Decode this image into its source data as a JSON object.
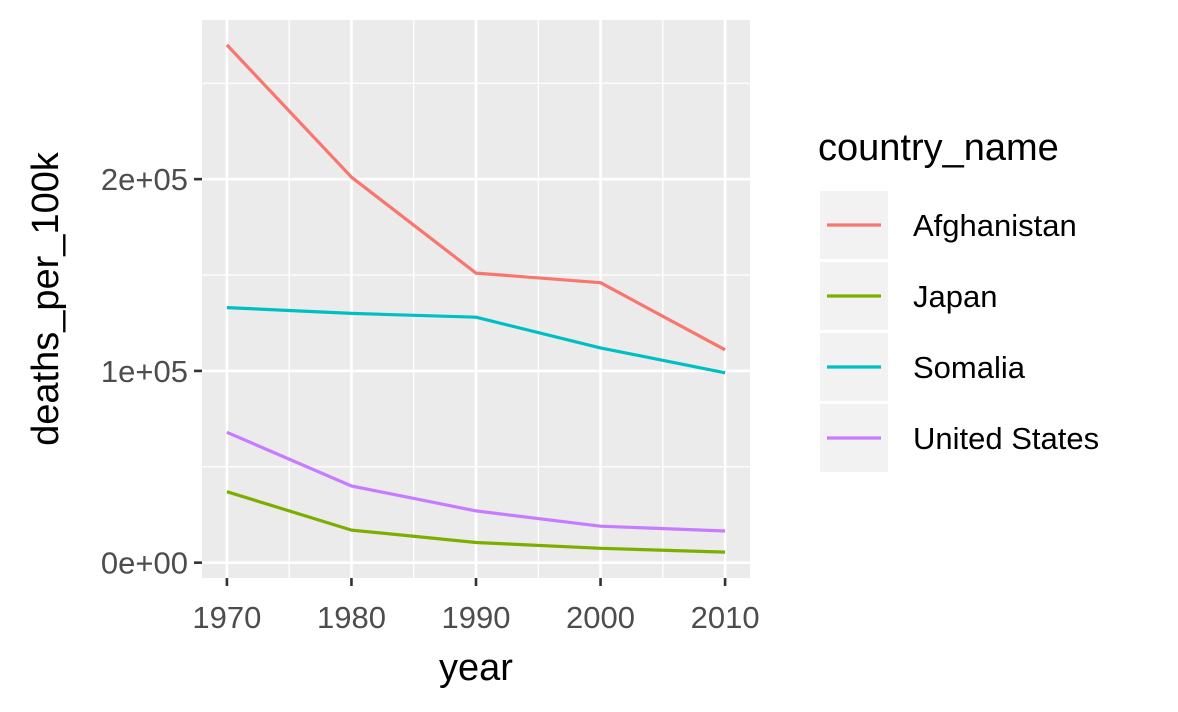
{
  "chart_data": {
    "type": "line",
    "xlabel": "year",
    "ylabel": "deaths_per_100k",
    "x": [
      1970,
      1980,
      1990,
      2000,
      2010
    ],
    "xlim": [
      1968,
      2012
    ],
    "ylim": [
      -8000,
      283000
    ],
    "x_ticks": [
      1970,
      1980,
      1990,
      2000,
      2010
    ],
    "x_tick_labels": [
      "1970",
      "1980",
      "1990",
      "2000",
      "2010"
    ],
    "y_ticks": [
      0,
      100000,
      200000
    ],
    "y_tick_labels": [
      "0e+00",
      "1e+05",
      "2e+05"
    ],
    "grid": true,
    "legend": {
      "title": "country_name",
      "placement": "right"
    },
    "series": [
      {
        "name": "Afghanistan",
        "color": "#F8766D",
        "values": [
          270000,
          201000,
          151000,
          146000,
          111000
        ]
      },
      {
        "name": "Japan",
        "color": "#7CAE00",
        "values": [
          37000,
          17000,
          10500,
          7500,
          5500
        ]
      },
      {
        "name": "Somalia",
        "color": "#00BFC4",
        "values": [
          133000,
          130000,
          128000,
          112000,
          99000
        ]
      },
      {
        "name": "United States",
        "color": "#C77CFF",
        "values": [
          68000,
          40000,
          27000,
          19000,
          16500
        ]
      }
    ]
  }
}
